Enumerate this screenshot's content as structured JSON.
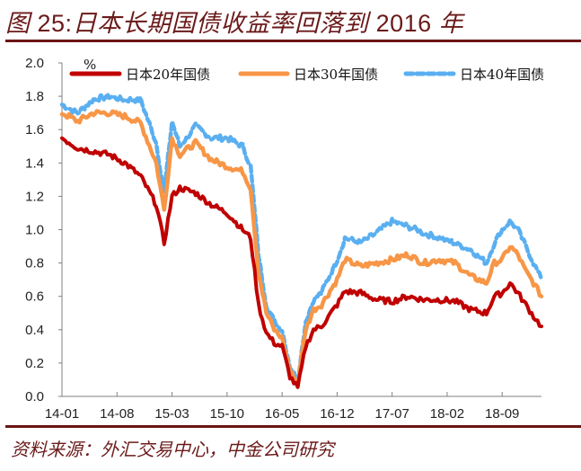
{
  "header": {
    "title_prefix": "图 ",
    "title_num": "25:",
    "title_text": "日本长期国债收益率回落到",
    "title_year": " 2016 ",
    "title_suffix": "年"
  },
  "footer": {
    "source": "资料来源：外汇交易中心，中金公司研究"
  },
  "colors": {
    "title": "#6b1a1a",
    "rule": "#6b1414",
    "jgb20": "#c00000",
    "jgb30": "#f79646",
    "jgb40": "#5aaff0",
    "axis": "#808080"
  },
  "chart_data": {
    "type": "line",
    "title": "日本长期国债收益率回落到2016年",
    "xlabel": "",
    "ylabel": "%",
    "unit_label": "%",
    "ylim": [
      0.0,
      2.0
    ],
    "yticks": [
      "0.0",
      "0.2",
      "0.4",
      "0.6",
      "0.8",
      "1.0",
      "1.2",
      "1.4",
      "1.6",
      "1.8",
      "2.0"
    ],
    "xticks": [
      "14-01",
      "14-08",
      "15-03",
      "15-10",
      "16-05",
      "16-12",
      "17-07",
      "18-02",
      "18-09"
    ],
    "grid": false,
    "legend_position": "top",
    "x": [
      "14-01",
      "14-03",
      "14-05",
      "14-07",
      "14-09",
      "14-11",
      "15-01",
      "15-02",
      "15-03",
      "15-04",
      "15-06",
      "15-08",
      "15-10",
      "15-12",
      "16-01",
      "16-02",
      "16-03",
      "16-04",
      "16-05",
      "16-06",
      "16-07",
      "16-08",
      "16-09",
      "16-10",
      "16-12",
      "17-01",
      "17-03",
      "17-05",
      "17-07",
      "17-09",
      "17-11",
      "18-01",
      "18-03",
      "18-05",
      "18-07",
      "18-08",
      "18-09",
      "18-10",
      "18-11",
      "18-12",
      "19-01",
      "19-02"
    ],
    "series": [
      {
        "name": "日本20年国债",
        "values": [
          1.55,
          1.49,
          1.47,
          1.45,
          1.4,
          1.32,
          1.15,
          0.92,
          1.2,
          1.25,
          1.22,
          1.15,
          1.1,
          1.0,
          0.95,
          0.55,
          0.38,
          0.32,
          0.3,
          0.12,
          0.05,
          0.3,
          0.4,
          0.42,
          0.55,
          0.63,
          0.62,
          0.58,
          0.57,
          0.6,
          0.58,
          0.58,
          0.57,
          0.52,
          0.5,
          0.6,
          0.62,
          0.68,
          0.62,
          0.55,
          0.48,
          0.42
        ]
      },
      {
        "name": "日本30年国债",
        "values": [
          1.7,
          1.65,
          1.7,
          1.7,
          1.68,
          1.64,
          1.4,
          1.12,
          1.55,
          1.45,
          1.52,
          1.42,
          1.38,
          1.35,
          1.25,
          0.75,
          0.5,
          0.4,
          0.35,
          0.15,
          0.08,
          0.4,
          0.52,
          0.55,
          0.7,
          0.82,
          0.78,
          0.8,
          0.82,
          0.85,
          0.8,
          0.82,
          0.8,
          0.72,
          0.68,
          0.8,
          0.82,
          0.9,
          0.85,
          0.75,
          0.68,
          0.6
        ]
      },
      {
        "name": "日本40年国债",
        "values": [
          1.75,
          1.7,
          1.78,
          1.8,
          1.78,
          1.78,
          1.52,
          1.22,
          1.65,
          1.5,
          1.62,
          1.55,
          1.55,
          1.5,
          1.38,
          0.85,
          0.55,
          0.45,
          0.4,
          0.18,
          0.1,
          0.45,
          0.58,
          0.62,
          0.82,
          0.95,
          0.92,
          0.98,
          1.05,
          1.02,
          0.98,
          0.95,
          0.92,
          0.88,
          0.8,
          0.92,
          1.0,
          1.05,
          1.0,
          0.9,
          0.8,
          0.7
        ]
      }
    ]
  },
  "legend": {
    "unit": "%",
    "items": [
      {
        "label": "日本20年国债",
        "style": "solid"
      },
      {
        "label": "日本30年国债",
        "style": "solid"
      },
      {
        "label": "日本40年国债",
        "style": "dashed"
      }
    ]
  }
}
